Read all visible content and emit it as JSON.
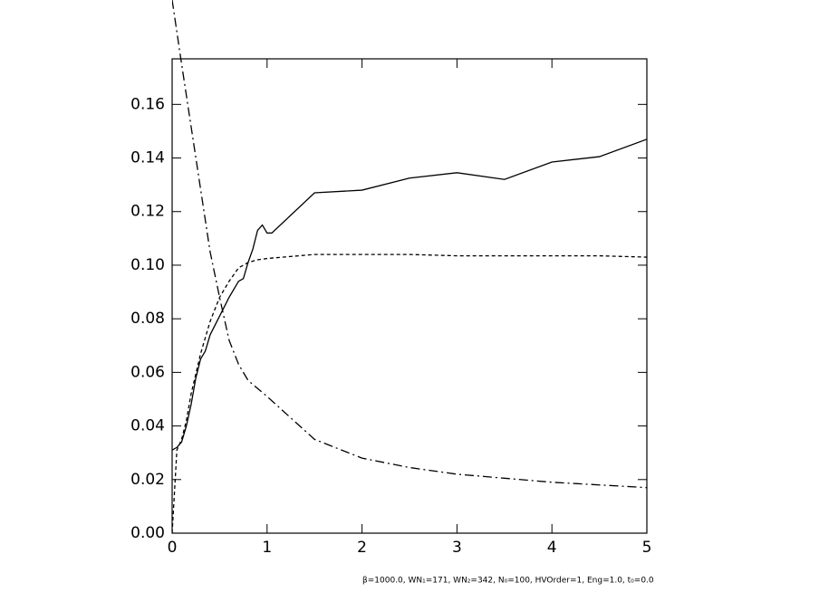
{
  "chart_data": {
    "type": "line",
    "annotation": "β=1000.0, WN₁=171, WN₂=342, N₀=100, HVOrder=1, Eng=1.0, t₀=0.0",
    "xlim": [
      0,
      5
    ],
    "xticks": [
      0,
      1,
      2,
      3,
      4,
      5
    ],
    "ylim": [
      0,
      0.177
    ],
    "yticks": [
      {
        "value": 0,
        "label": "0.00"
      },
      {
        "value": 0.02,
        "label": "0.02"
      },
      {
        "value": 0.04,
        "label": "0.04"
      },
      {
        "value": 0.06,
        "label": "0.06"
      },
      {
        "value": 0.08,
        "label": "0.08"
      },
      {
        "value": 0.1,
        "label": "0.10"
      },
      {
        "value": 0.12,
        "label": "0.12"
      },
      {
        "value": 0.14,
        "label": "0.14"
      },
      {
        "value": 0.16,
        "label": "0.16"
      }
    ],
    "series": [
      {
        "color": "#000000",
        "linestyle": "solid",
        "x": [
          0,
          0.05,
          0.1,
          0.15,
          0.2,
          0.25,
          0.3,
          0.35,
          0.4,
          0.5,
          0.6,
          0.7,
          0.75,
          0.8,
          0.85,
          0.9,
          0.95,
          1.0,
          1.05,
          1.5,
          2.0,
          2.5,
          3.0,
          3.5,
          4.0,
          4.5,
          5.0
        ],
        "values": [
          0.031,
          0.032,
          0.034,
          0.04,
          0.048,
          0.058,
          0.065,
          0.068,
          0.074,
          0.081,
          0.088,
          0.094,
          0.095,
          0.101,
          0.106,
          0.113,
          0.115,
          0.112,
          0.112,
          0.127,
          0.128,
          0.1325,
          0.1345,
          0.132,
          0.1385,
          0.1405,
          0.147
        ]
      },
      {
        "color": "#000000",
        "linestyle": "dashed",
        "x": [
          0,
          0.05,
          0.1,
          0.15,
          0.2,
          0.3,
          0.4,
          0.5,
          0.6,
          0.7,
          0.8,
          0.9,
          1.0,
          1.5,
          2.0,
          2.5,
          3.0,
          3.5,
          4.0,
          4.5,
          5.0
        ],
        "values": [
          0.0,
          0.031,
          0.035,
          0.042,
          0.052,
          0.067,
          0.079,
          0.088,
          0.094,
          0.099,
          0.101,
          0.102,
          0.1025,
          0.104,
          0.104,
          0.104,
          0.1035,
          0.1035,
          0.1035,
          0.1035,
          0.103
        ]
      },
      {
        "color": "#000000",
        "linestyle": "dashdot",
        "x": [
          0,
          0.1,
          0.25,
          0.4,
          0.5,
          0.6,
          0.7,
          0.8,
          1.0,
          1.5,
          2.0,
          2.5,
          3.0,
          3.5,
          4.0,
          4.5,
          5.0
        ],
        "values": [
          0.199,
          0.175,
          0.14,
          0.105,
          0.088,
          0.072,
          0.063,
          0.057,
          0.051,
          0.035,
          0.028,
          0.0245,
          0.022,
          0.0205,
          0.019,
          0.018,
          0.017
        ]
      }
    ]
  }
}
